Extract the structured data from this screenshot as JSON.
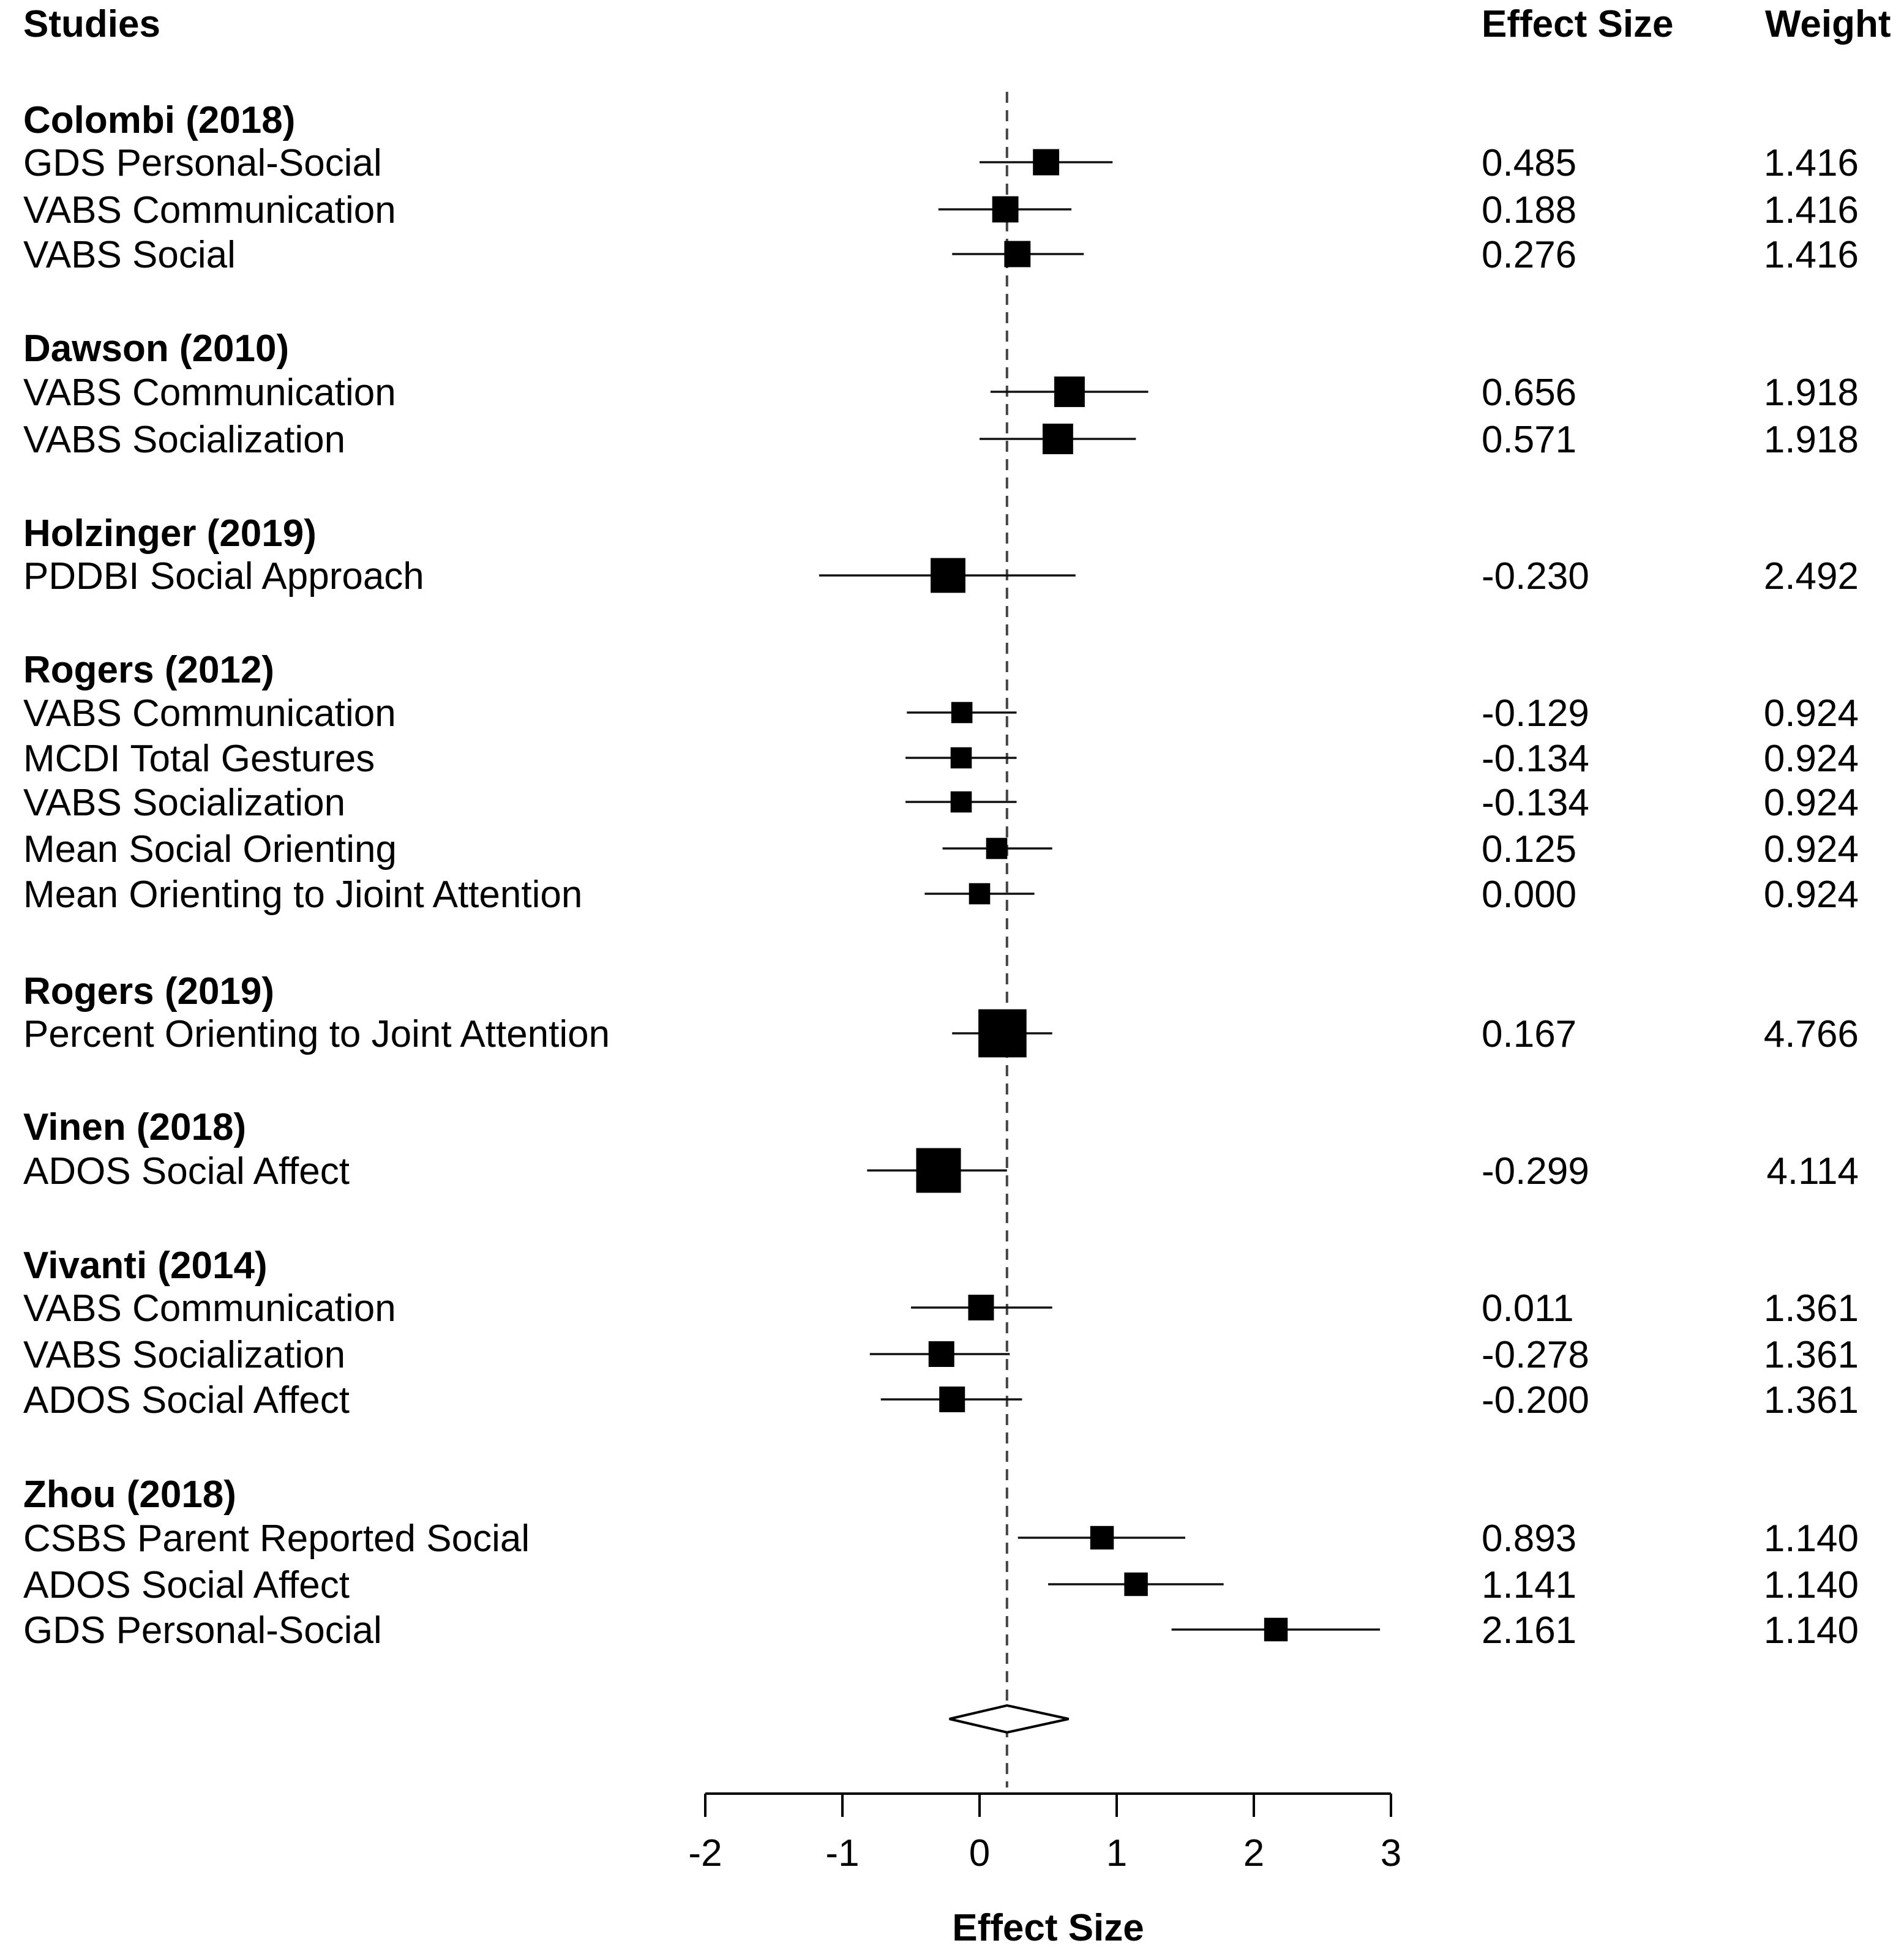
{
  "chart_data": {
    "type": "forest",
    "headers": {
      "studies": "Studies",
      "effect": "Effect Size",
      "weight": "Weight"
    },
    "xlabel": "Effect Size",
    "xlim": [
      -2,
      3
    ],
    "ticks": [
      "-2",
      "-1",
      "0",
      "1",
      "2",
      "3"
    ],
    "reference_line": 0.2,
    "summary": {
      "estimate": 0.2,
      "ci_low": -0.22,
      "ci_high": 0.65
    },
    "groups": [
      {
        "title": "Colombi (2018)",
        "rows": [
          {
            "label": "GDS Personal-Social",
            "effect": "0.485",
            "weight": "1.416",
            "es": 0.485,
            "lo": 0.0,
            "hi": 0.97
          },
          {
            "label": "VABS Communication",
            "effect": "0.188",
            "weight": "1.416",
            "es": 0.188,
            "lo": -0.3,
            "hi": 0.67
          },
          {
            "label": "VABS Social",
            "effect": "0.276",
            "weight": "1.416",
            "es": 0.276,
            "lo": -0.2,
            "hi": 0.76
          }
        ]
      },
      {
        "title": "Dawson (2010)",
        "rows": [
          {
            "label": "VABS Communication",
            "effect": "0.656",
            "weight": "1.918",
            "es": 0.656,
            "lo": 0.08,
            "hi": 1.23
          },
          {
            "label": "VABS Socialization",
            "effect": "0.571",
            "weight": "1.918",
            "es": 0.571,
            "lo": 0.0,
            "hi": 1.14
          }
        ]
      },
      {
        "title": "Holzinger (2019)",
        "rows": [
          {
            "label": "PDDBI Social Approach",
            "effect": "-0.230",
            "weight": "2.492",
            "es": -0.23,
            "lo": -1.17,
            "hi": 0.7
          }
        ]
      },
      {
        "title": "Rogers (2012)",
        "rows": [
          {
            "label": "VABS Communication",
            "effect": "-0.129",
            "weight": "0.924",
            "es": -0.129,
            "lo": -0.53,
            "hi": 0.27
          },
          {
            "label": "MCDI Total Gestures",
            "effect": "-0.134",
            "weight": "0.924",
            "es": -0.134,
            "lo": -0.54,
            "hi": 0.27
          },
          {
            "label": "VABS Socialization",
            "effect": "-0.134",
            "weight": "0.924",
            "es": -0.134,
            "lo": -0.54,
            "hi": 0.27
          },
          {
            "label": "Mean Social Orienting",
            "effect": "0.125",
            "weight": "0.924",
            "es": 0.125,
            "lo": -0.27,
            "hi": 0.53
          },
          {
            "label": "Mean Orienting to Jioint Attention",
            "effect": "0.000",
            "weight": "0.924",
            "es": 0.0,
            "lo": -0.4,
            "hi": 0.4
          }
        ]
      },
      {
        "title": "Rogers (2019)",
        "rows": [
          {
            "label": "Percent Orienting to Joint Attention",
            "effect": "0.167",
            "weight": "4.766",
            "es": 0.167,
            "lo": -0.2,
            "hi": 0.53
          }
        ]
      },
      {
        "title": "Vinen (2018)",
        "rows": [
          {
            "label": "ADOS Social Affect",
            "effect": "-0.299",
            "weight": "4.114",
            "es": -0.299,
            "lo": -0.82,
            "hi": 0.2
          }
        ]
      },
      {
        "title": "Vivanti (2014)",
        "rows": [
          {
            "label": "VABS Communication",
            "effect": "0.011",
            "weight": "1.361",
            "es": 0.011,
            "lo": -0.5,
            "hi": 0.53
          },
          {
            "label": "VABS Socialization",
            "effect": "-0.278",
            "weight": "1.361",
            "es": -0.278,
            "lo": -0.8,
            "hi": 0.22
          },
          {
            "label": "ADOS Social Affect",
            "effect": "-0.200",
            "weight": "1.361",
            "es": -0.2,
            "lo": -0.72,
            "hi": 0.31
          }
        ]
      },
      {
        "title": "Zhou (2018)",
        "rows": [
          {
            "label": "CSBS Parent Reported Social",
            "effect": "0.893",
            "weight": "1.140",
            "es": 0.893,
            "lo": 0.28,
            "hi": 1.5
          },
          {
            "label": "ADOS Social Affect",
            "effect": "1.141",
            "weight": "1.140",
            "es": 1.141,
            "lo": 0.5,
            "hi": 1.78
          },
          {
            "label": "GDS Personal-Social",
            "effect": "2.161",
            "weight": "1.140",
            "es": 2.161,
            "lo": 1.4,
            "hi": 2.92
          }
        ]
      }
    ]
  }
}
